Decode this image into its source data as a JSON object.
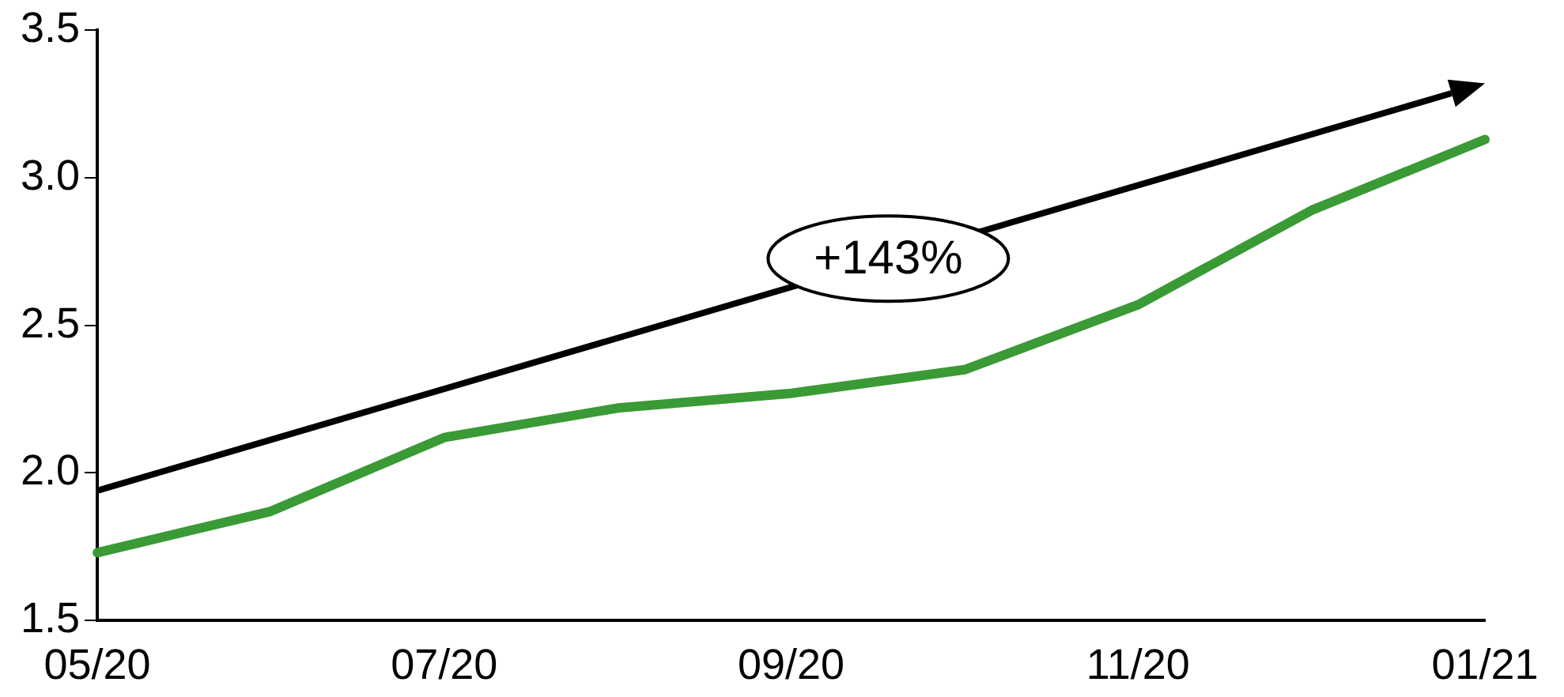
{
  "chart_data": {
    "type": "line",
    "categories": [
      "05/20",
      null,
      "07/20",
      null,
      "09/20",
      null,
      "11/20",
      null,
      "01/21"
    ],
    "series": [
      {
        "color": "#3a9a35",
        "values": [
          1.73,
          1.87,
          2.12,
          2.22,
          2.27,
          2.35,
          2.57,
          2.89,
          3.13
        ]
      }
    ],
    "ylim": [
      1.5,
      3.5
    ],
    "yticks": [
      {
        "value": 1.5,
        "label": "1.5"
      },
      {
        "value": 2,
        "label": "2.0"
      },
      {
        "value": 2.5,
        "label": "2.5"
      },
      {
        "value": 3,
        "label": "3.0"
      },
      {
        "value": 3.5,
        "label": "3.5"
      }
    ],
    "grid": false,
    "legend": false,
    "marker": "none",
    "line_style": "solid",
    "annotations": [
      "+143%"
    ]
  }
}
